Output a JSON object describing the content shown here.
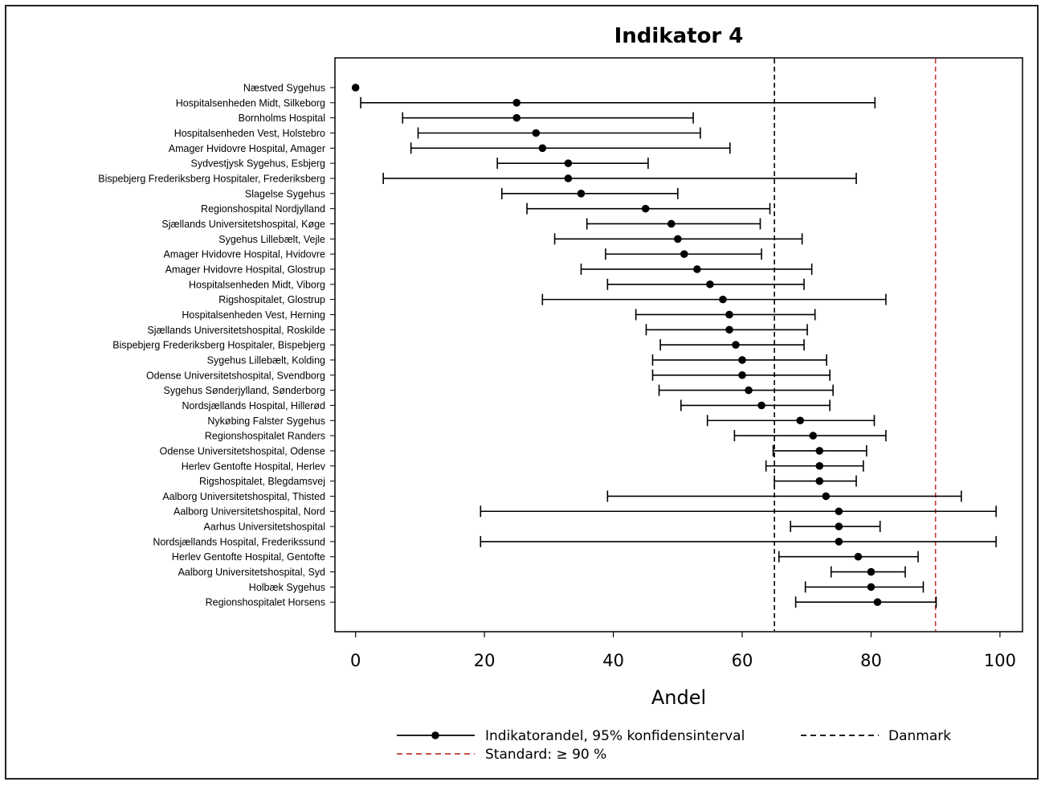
{
  "chart_data": {
    "type": "scatter",
    "title": "Indikator 4",
    "xlabel": "Andel",
    "ylabel": "",
    "xlim": [
      -3.2,
      103.5
    ],
    "xticks": [
      0,
      20,
      40,
      60,
      80,
      100
    ],
    "grid": false,
    "reference_lines": [
      {
        "name": "Danmark",
        "x": 65,
        "color": "#000000",
        "style": "dashed"
      },
      {
        "name": "Standard: ≥ 90 %",
        "x": 90,
        "color": "#c0392b",
        "style": "dashed"
      }
    ],
    "legend": {
      "placement": "bottom",
      "items": [
        {
          "label": "Indikatorandel, 95% konfidensinterval",
          "kind": "marker-line",
          "color": "#000000"
        },
        {
          "label": "Danmark",
          "kind": "dashed",
          "color": "#000000"
        },
        {
          "label": "Standard: ≥ 90 %",
          "kind": "dashed",
          "color": "#c0392b"
        }
      ]
    },
    "rows": [
      {
        "label": "Næstved Sygehus",
        "value": 0,
        "low": null,
        "high": null
      },
      {
        "label": "Hospitalsenheden Midt, Silkeborg",
        "value": 25,
        "low": 0.8,
        "high": 80.6
      },
      {
        "label": "Bornholms Hospital",
        "value": 25,
        "low": 7.3,
        "high": 52.4
      },
      {
        "label": "Hospitalsenheden Vest, Holstebro",
        "value": 28,
        "low": 9.7,
        "high": 53.5
      },
      {
        "label": "Amager Hvidovre Hospital, Amager",
        "value": 29,
        "low": 8.6,
        "high": 58.1
      },
      {
        "label": "Sydvestjysk Sygehus, Esbjerg",
        "value": 33,
        "low": 22.0,
        "high": 45.4
      },
      {
        "label": "Bispebjerg Frederiksberg Hospitaler, Frederiksberg",
        "value": 33,
        "low": 4.3,
        "high": 77.7
      },
      {
        "label": "Slagelse Sygehus",
        "value": 35,
        "low": 22.7,
        "high": 50.0
      },
      {
        "label": "Regionshospital Nordjylland",
        "value": 45,
        "low": 26.6,
        "high": 64.3
      },
      {
        "label": "Sjællands Universitetshospital, Køge",
        "value": 49,
        "low": 35.9,
        "high": 62.8
      },
      {
        "label": "Sygehus Lillebælt, Vejle",
        "value": 50,
        "low": 30.9,
        "high": 69.3
      },
      {
        "label": "Amager Hvidovre Hospital, Hvidovre",
        "value": 51,
        "low": 38.8,
        "high": 63.0
      },
      {
        "label": "Amager Hvidovre Hospital, Glostrup",
        "value": 53,
        "low": 35.0,
        "high": 70.8
      },
      {
        "label": "Hospitalsenheden Midt, Viborg",
        "value": 55,
        "low": 39.1,
        "high": 69.6
      },
      {
        "label": "Rigshospitalet, Glostrup",
        "value": 57,
        "low": 29.0,
        "high": 82.3
      },
      {
        "label": "Hospitalsenheden Vest, Herning",
        "value": 58,
        "low": 43.5,
        "high": 71.3
      },
      {
        "label": "Sjællands Universitetshospital, Roskilde",
        "value": 58,
        "low": 45.1,
        "high": 70.1
      },
      {
        "label": "Bispebjerg Frederiksberg Hospitaler, Bispebjerg",
        "value": 59,
        "low": 47.3,
        "high": 69.6
      },
      {
        "label": "Sygehus Lillebælt, Kolding",
        "value": 60,
        "low": 46.1,
        "high": 73.1
      },
      {
        "label": "Odense Universitetshospital, Svendborg",
        "value": 60,
        "low": 46.1,
        "high": 73.6
      },
      {
        "label": "Sygehus Sønderjylland, Sønderborg",
        "value": 61,
        "low": 47.1,
        "high": 74.1
      },
      {
        "label": "Nordsjællands Hospital, Hillerød",
        "value": 63,
        "low": 50.5,
        "high": 73.6
      },
      {
        "label": "Nykøbing Falster Sygehus",
        "value": 69,
        "low": 54.6,
        "high": 80.5
      },
      {
        "label": "Regionshospitalet Randers",
        "value": 71,
        "low": 58.8,
        "high": 82.3
      },
      {
        "label": "Odense Universitetshospital, Odense",
        "value": 72,
        "low": 64.8,
        "high": 79.3
      },
      {
        "label": "Herlev Gentofte Hospital, Herlev",
        "value": 72,
        "low": 63.7,
        "high": 78.8
      },
      {
        "label": "Rigshospitalet, Blegdamsvej",
        "value": 72,
        "low": 65.0,
        "high": 77.7
      },
      {
        "label": "Aalborg Universitetshospital, Thisted",
        "value": 73,
        "low": 39.1,
        "high": 94.0
      },
      {
        "label": "Aalborg Universitetshospital, Nord",
        "value": 75,
        "low": 19.4,
        "high": 99.4
      },
      {
        "label": "Aarhus Universitetshospital",
        "value": 75,
        "low": 67.5,
        "high": 81.4
      },
      {
        "label": "Nordsjællands Hospital, Frederikssund",
        "value": 75,
        "low": 19.4,
        "high": 99.4
      },
      {
        "label": "Herlev Gentofte Hospital, Gentofte",
        "value": 78,
        "low": 65.7,
        "high": 87.3
      },
      {
        "label": "Aalborg Universitetshospital, Syd",
        "value": 80,
        "low": 73.8,
        "high": 85.3
      },
      {
        "label": "Holbæk Sygehus",
        "value": 80,
        "low": 69.8,
        "high": 88.1
      },
      {
        "label": "Regionshospitalet Horsens",
        "value": 81,
        "low": 68.3,
        "high": 90.1
      }
    ]
  }
}
